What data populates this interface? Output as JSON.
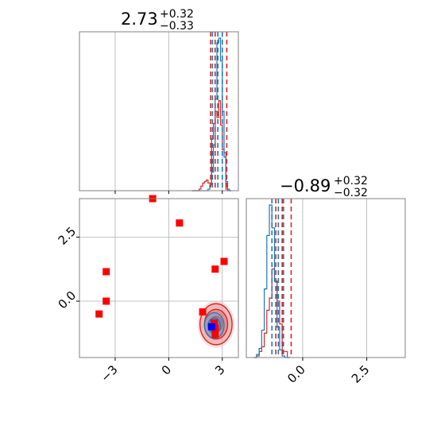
{
  "chart_data": {
    "type": "corner",
    "grid": true,
    "titles": [
      {
        "param": 0,
        "median": "2.73",
        "plus": "+0.32",
        "minus": "−0.33"
      },
      {
        "param": 1,
        "median": "−0.89",
        "plus": "+0.32",
        "minus": "−0.32"
      }
    ],
    "axes": {
      "p0": {
        "range": [
          -5.0,
          3.9
        ],
        "ticks": [
          -3,
          0,
          3
        ],
        "tick_labels": [
          "−3",
          "0",
          "3"
        ]
      },
      "p1": {
        "range": [
          -2.2,
          4.0
        ],
        "ticks": [
          0.0,
          2.5
        ],
        "tick_labels": [
          "0.0",
          "2.5"
        ]
      }
    },
    "colors": {
      "blue": "#1f77b4",
      "red": "#d62728",
      "grid": "#b0b0b0",
      "frame": "#808080"
    },
    "hist_p0": {
      "bins_start": 1.3,
      "bin_width": 0.1,
      "ymax": 1.0,
      "blue": [
        0,
        0,
        0,
        0,
        0,
        0,
        0,
        0,
        0,
        0.01,
        0.04,
        0.12,
        0.3,
        0.6,
        0.97,
        1.0,
        0.85,
        0.52,
        0.22,
        0.06,
        0.01,
        0
      ],
      "red": [
        0,
        0,
        0,
        0,
        0.01,
        0.03,
        0.05,
        0.06,
        0.07,
        0.05,
        0.05,
        0.34,
        0.44,
        0.52,
        0.48,
        0.59,
        0.43,
        0.27,
        0.25,
        0.01,
        0,
        0
      ],
      "blue_quantiles": [
        2.45,
        2.75,
        3.0
      ],
      "red_quantiles": [
        2.35,
        2.6,
        3.25
      ]
    },
    "hist_p1": {
      "bins_start": -1.9,
      "bin_width": 0.1,
      "ymax": 1.0,
      "blue": [
        0,
        0.02,
        0.06,
        0.18,
        0.45,
        0.8,
        1.0,
        0.85,
        0.5,
        0.2,
        0.05,
        0.01,
        0,
        0
      ],
      "red": [
        0,
        0.01,
        0.04,
        0.07,
        0.16,
        0.31,
        0.39,
        0.58,
        0.5,
        0.37,
        0.22,
        0.04,
        0.04,
        0
      ],
      "blue_quantiles": [
        -1.2,
        -0.95,
        -0.75
      ],
      "red_quantiles": [
        -1.05,
        -0.8,
        -0.45
      ]
    },
    "markers_red": [
      {
        "x": -0.9,
        "y": 4.0
      },
      {
        "x": 0.6,
        "y": 3.05
      },
      {
        "x": 3.1,
        "y": 1.55
      },
      {
        "x": 2.6,
        "y": 1.25
      },
      {
        "x": -3.5,
        "y": 1.15
      },
      {
        "x": -3.5,
        "y": 0.0
      },
      {
        "x": -3.9,
        "y": -0.5
      },
      {
        "x": 1.9,
        "y": -0.42
      },
      {
        "x": 2.55,
        "y": -0.85
      },
      {
        "x": 2.6,
        "y": -1.3
      },
      {
        "x": 2.6,
        "y": -1.05
      }
    ],
    "marker_blue": {
      "x": 2.4,
      "y": -1.0
    },
    "contour_red": {
      "cx": 2.65,
      "cy": -0.9,
      "rx": [
        0.9,
        0.65,
        0.35
      ],
      "ry": [
        0.8,
        0.58,
        0.3
      ]
    },
    "contour_blue": {
      "cx": 2.55,
      "cy": -0.95,
      "rx": [
        0.55,
        0.35
      ],
      "ry": [
        0.5,
        0.3
      ]
    }
  }
}
